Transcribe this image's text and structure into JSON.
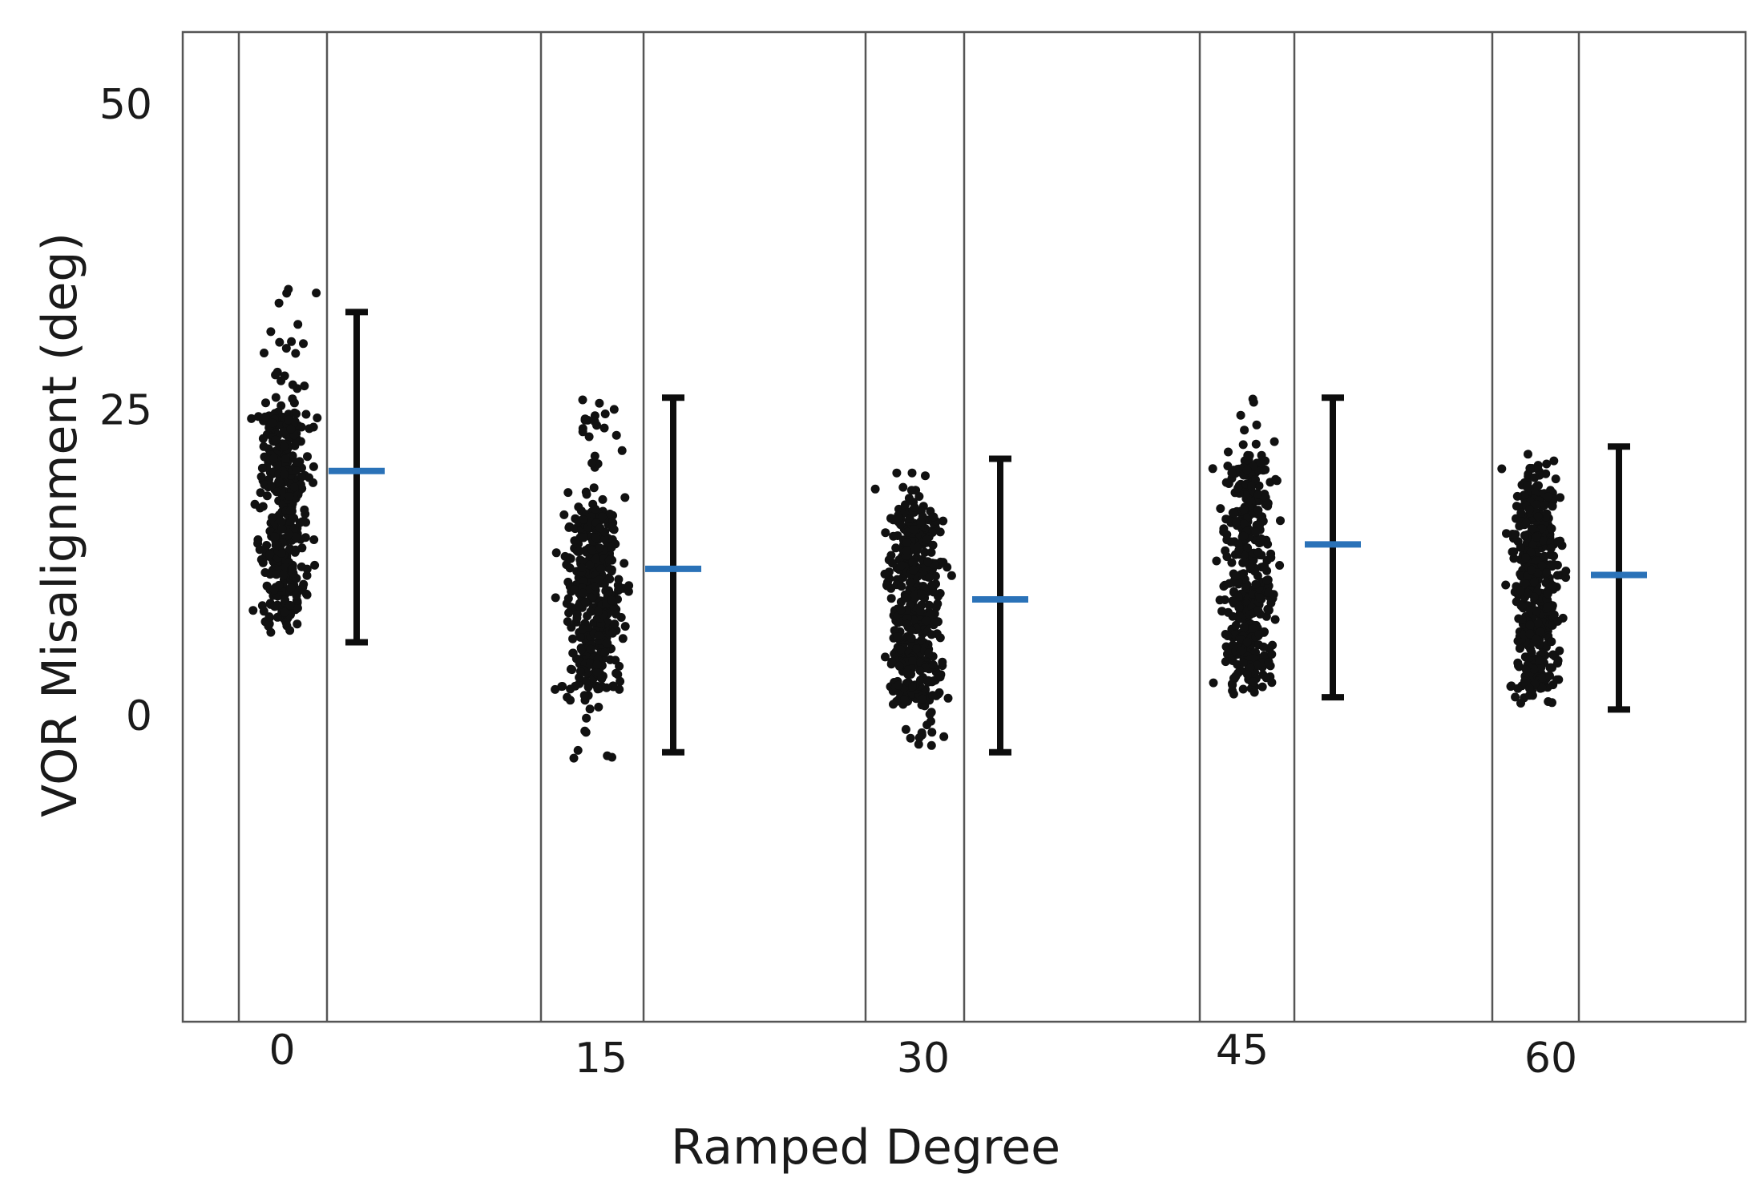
{
  "chart_data": {
    "type": "scatter",
    "title": "",
    "xlabel": "Ramped Degree",
    "ylabel": "VOR Misalignment (deg)",
    "ylim": [
      -25,
      56
    ],
    "y_ticks": [
      0,
      25,
      50
    ],
    "y_tick_labels": [
      "0",
      "25",
      "50"
    ],
    "categories": [
      "0",
      "15",
      "30",
      "45",
      "60"
    ],
    "grid": false,
    "legend": "none",
    "colors": {
      "points": "#111111",
      "mean": "#2a72b8",
      "errorbar": "#0d0d0d",
      "frame": "#555555"
    },
    "groups": [
      {
        "category": "0",
        "points_min": 6.5,
        "points_max": 35,
        "dense_range": [
          8,
          25
        ],
        "mean": 20,
        "error_low": 6,
        "error_high": 33
      },
      {
        "category": "15",
        "points_min": -3.5,
        "points_max": 26,
        "dense_range": [
          2,
          17
        ],
        "mean": 12,
        "error_low": -3,
        "error_high": 26
      },
      {
        "category": "30",
        "points_min": -3,
        "points_max": 20,
        "dense_range": [
          1,
          17
        ],
        "mean": 9.5,
        "error_low": -3,
        "error_high": 21
      },
      {
        "category": "45",
        "points_min": 1.5,
        "points_max": 26,
        "dense_range": [
          2.5,
          21
        ],
        "mean": 14,
        "error_low": 1.5,
        "error_high": 26
      },
      {
        "category": "60",
        "points_min": 1,
        "points_max": 21.5,
        "dense_range": [
          2,
          19
        ],
        "mean": 11.5,
        "error_low": 0.5,
        "error_high": 22
      }
    ]
  }
}
